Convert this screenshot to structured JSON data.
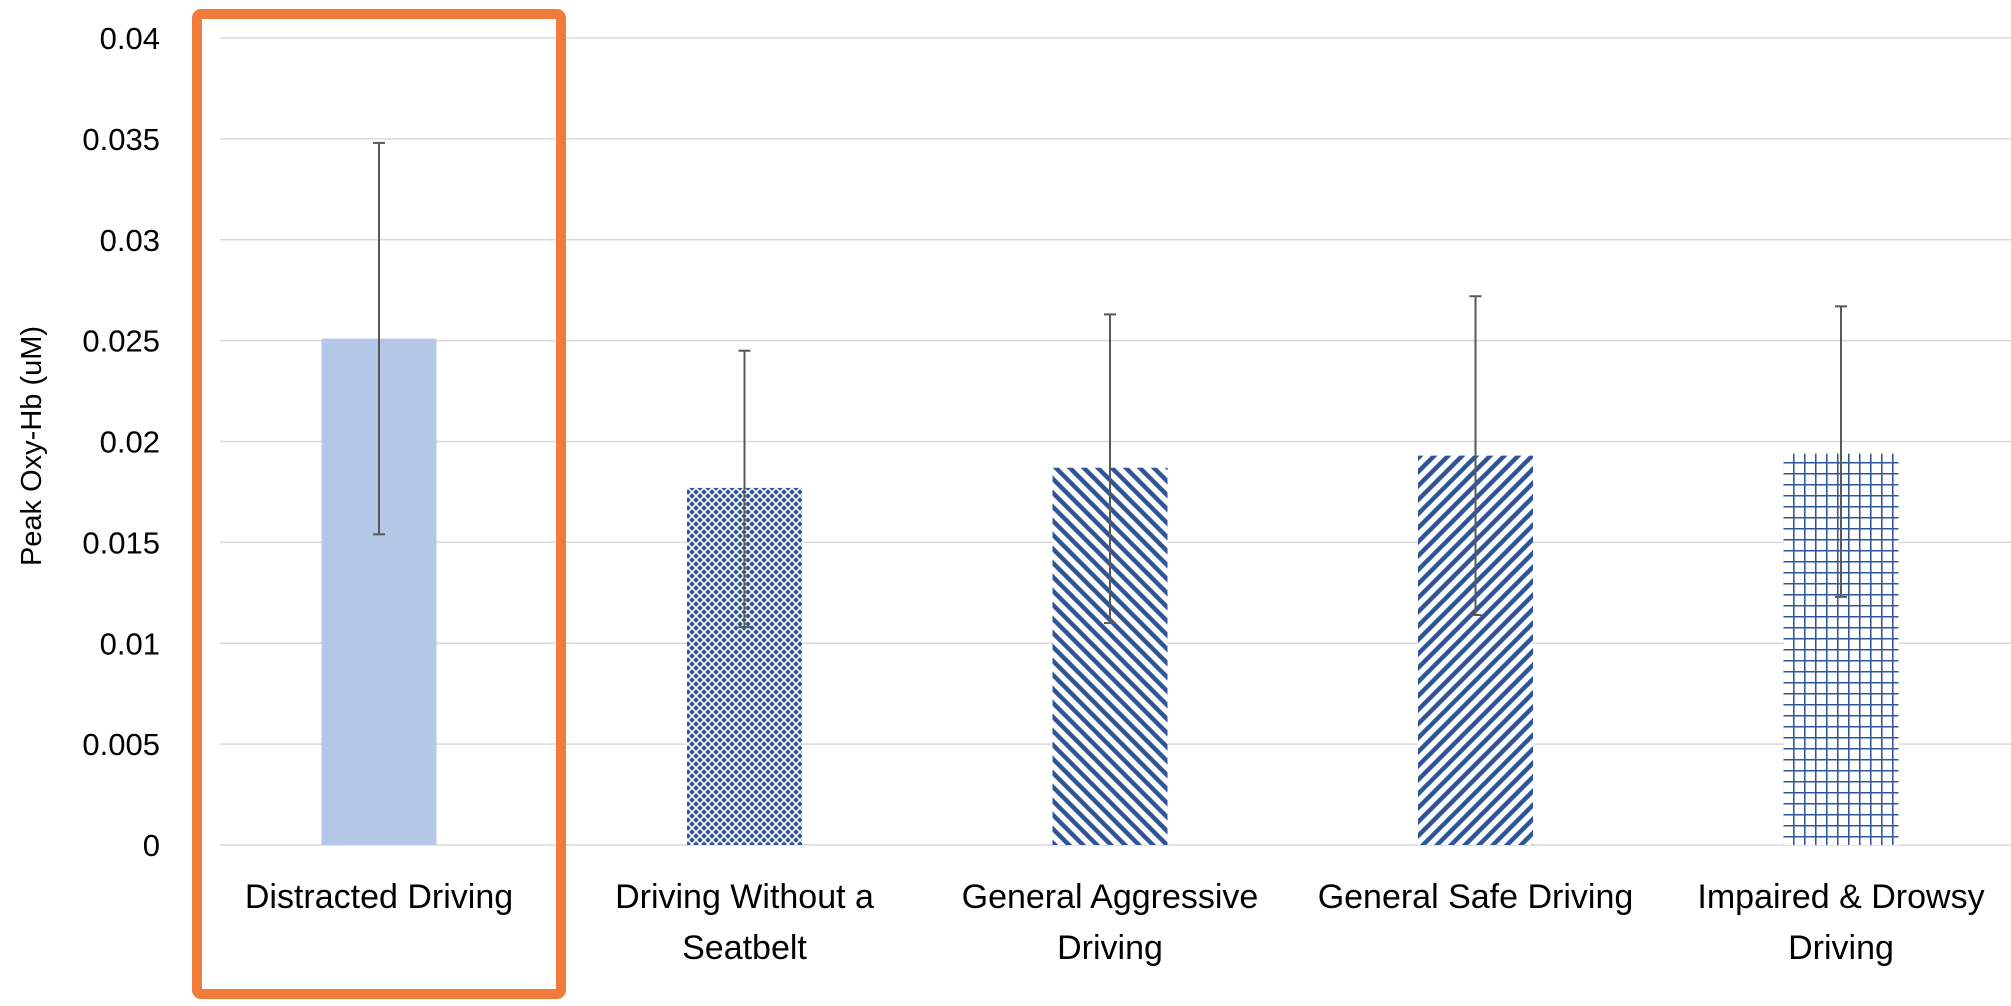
{
  "chart_data": {
    "type": "bar",
    "title": "",
    "xlabel": "",
    "ylabel": "Peak Oxy-Hb (uM)",
    "ylim": [
      0,
      0.04
    ],
    "y_ticks": [
      "0",
      "0.005",
      "0.01",
      "0.015",
      "0.02",
      "0.025",
      "0.03",
      "0.035",
      "0.04"
    ],
    "grid": true,
    "legend": "none",
    "categories": [
      [
        "Distracted Driving"
      ],
      [
        "Driving Without a",
        "Seatbelt"
      ],
      [
        "General Aggressive",
        "Driving"
      ],
      [
        "General Safe Driving"
      ],
      [
        "Impaired & Drowsy",
        "Driving"
      ]
    ],
    "values": [
      0.0251,
      0.0177,
      0.0187,
      0.0193,
      0.0194
    ],
    "error_low": [
      0.0154,
      0.0108,
      0.011,
      0.0114,
      0.0123
    ],
    "error_high": [
      0.0348,
      0.0245,
      0.0263,
      0.0272,
      0.0267
    ],
    "fills": [
      "solid",
      "crosshatch-fine",
      "diagonal-back",
      "diagonal-forward",
      "grid"
    ],
    "highlighted_category": 0
  },
  "colors": {
    "solid_bar": "#b4c7e7",
    "pattern_bar": "#2f5597",
    "grid": "#d9d9d9",
    "error_bar": "#595959",
    "highlight": "#f07b3a"
  }
}
